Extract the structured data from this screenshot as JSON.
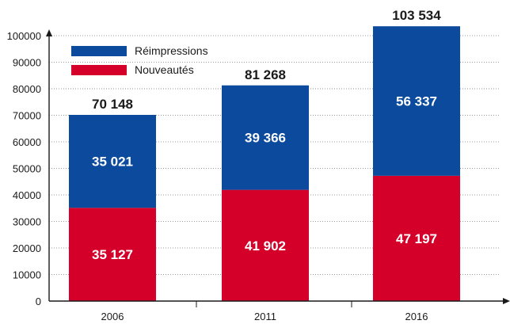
{
  "chart_data": {
    "type": "bar",
    "stacked": true,
    "categories": [
      "2006",
      "2011",
      "2016"
    ],
    "series": [
      {
        "name": "Nouveautés",
        "color": "#d4002a",
        "values": [
          35127,
          41902,
          47197
        ],
        "labels": [
          "35 127",
          "41 902",
          "47 197"
        ]
      },
      {
        "name": "Réimpressions",
        "color": "#0b4a9c",
        "values": [
          35021,
          39366,
          56337
        ],
        "labels": [
          "35 021",
          "39 366",
          "56 337"
        ]
      }
    ],
    "totals": [
      70148,
      81268,
      103534
    ],
    "total_labels": [
      "70 148",
      "81 268",
      "103 534"
    ],
    "ylim": [
      0,
      100000
    ],
    "yticks": [
      0,
      10000,
      20000,
      30000,
      40000,
      50000,
      60000,
      70000,
      80000,
      90000,
      100000
    ],
    "grid": true,
    "legend_position": "top-left",
    "legend_order": [
      "Réimpressions",
      "Nouveautés"
    ],
    "xlabel": "",
    "ylabel": "",
    "title": ""
  }
}
